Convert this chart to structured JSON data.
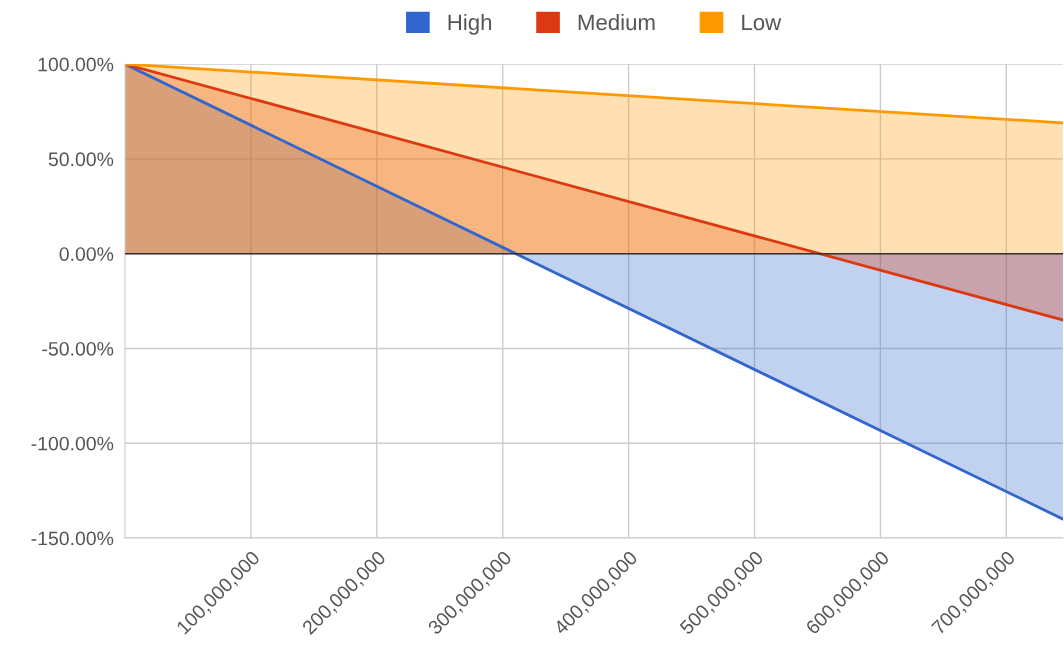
{
  "chart_data": {
    "type": "area",
    "x": [
      0,
      745000000
    ],
    "series": [
      {
        "name": "High",
        "color": "#3366cc",
        "values": [
          100,
          -140
        ]
      },
      {
        "name": "Medium",
        "color": "#dc3912",
        "values": [
          100,
          -35
        ]
      },
      {
        "name": "Low",
        "color": "#ff9900",
        "values": [
          100,
          69
        ]
      }
    ],
    "xlim": [
      0,
      745000000
    ],
    "xticks": [
      {
        "value": 100000000,
        "label": "100,000,000"
      },
      {
        "value": 200000000,
        "label": "200,000,000"
      },
      {
        "value": 300000000,
        "label": "300,000,000"
      },
      {
        "value": 400000000,
        "label": "400,000,000"
      },
      {
        "value": 500000000,
        "label": "500,000,000"
      },
      {
        "value": 600000000,
        "label": "600,000,000"
      },
      {
        "value": 700000000,
        "label": "700,000,000"
      }
    ],
    "ylim": [
      -150,
      100
    ],
    "yticks": [
      {
        "value": 100,
        "label": "100.00%"
      },
      {
        "value": 50,
        "label": "50.00%"
      },
      {
        "value": 0,
        "label": "0.00%"
      },
      {
        "value": -50,
        "label": "-50.00%"
      },
      {
        "value": -100,
        "label": "-100.00%"
      },
      {
        "value": -150,
        "label": "-150.00%"
      }
    ],
    "ref_lines": [
      {
        "axis": "y",
        "value": 0,
        "color": "#333333"
      }
    ],
    "grid": true,
    "legend": "top"
  }
}
